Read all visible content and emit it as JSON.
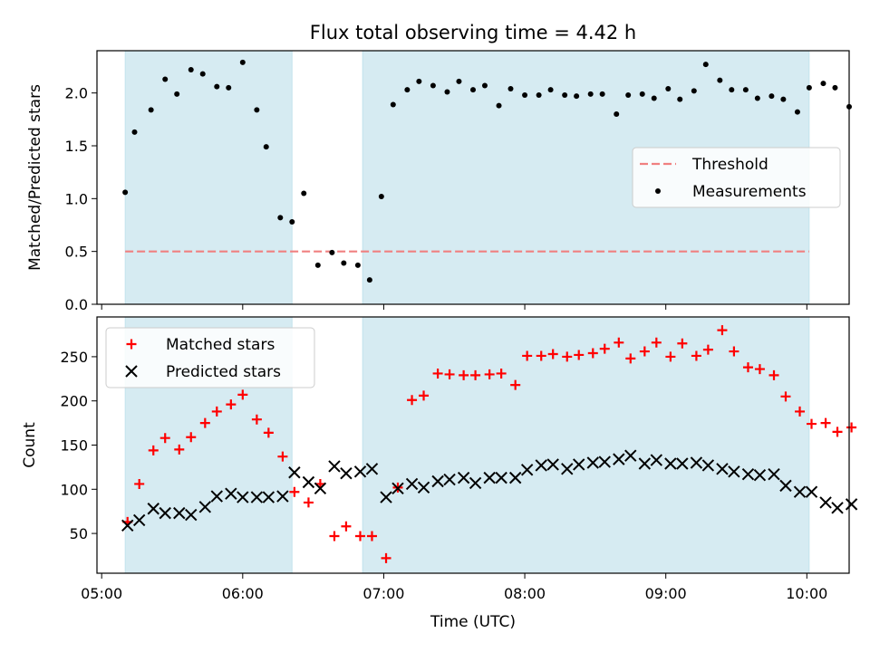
{
  "chart_data": [
    {
      "type": "scatter",
      "title": "Flux total observing time = 4.42 h",
      "xlabel": "",
      "ylabel": "Matched/Predicted stars",
      "xlim": [
        "04:58",
        "10:18"
      ],
      "ylim": [
        0,
        2.4
      ],
      "yticks": [
        0.0,
        0.5,
        1.0,
        1.5,
        2.0
      ],
      "ytick_labels": [
        "0.0",
        "0.5",
        "1.0",
        "1.5",
        "2.0"
      ],
      "xticks": [
        "05:00",
        "06:00",
        "07:00",
        "08:00",
        "09:00",
        "10:00"
      ],
      "shaded_intervals": [
        [
          "05:10",
          "06:21"
        ],
        [
          "06:51",
          "10:01"
        ]
      ],
      "threshold": {
        "name": "Threshold",
        "value": 0.5,
        "x_range": [
          "05:10",
          "10:01"
        ],
        "color": "#f08080",
        "style": "dashed"
      },
      "legend_position": "center-right",
      "series": [
        {
          "name": "Measurements",
          "color": "#000000",
          "marker": "dot",
          "points": [
            [
              "05:10",
              1.06
            ],
            [
              "05:14",
              1.63
            ],
            [
              "05:21",
              1.84
            ],
            [
              "05:27",
              2.13
            ],
            [
              "05:32",
              1.99
            ],
            [
              "05:38",
              2.22
            ],
            [
              "05:43",
              2.18
            ],
            [
              "05:49",
              2.06
            ],
            [
              "05:54",
              2.05
            ],
            [
              "06:00",
              2.29
            ],
            [
              "06:06",
              1.84
            ],
            [
              "06:10",
              1.49
            ],
            [
              "06:16",
              0.82
            ],
            [
              "06:21",
              0.78
            ],
            [
              "06:26",
              1.05
            ],
            [
              "06:32",
              0.37
            ],
            [
              "06:38",
              0.49
            ],
            [
              "06:43",
              0.39
            ],
            [
              "06:49",
              0.37
            ],
            [
              "06:54",
              0.23
            ],
            [
              "06:59",
              1.02
            ],
            [
              "07:04",
              1.89
            ],
            [
              "07:10",
              2.03
            ],
            [
              "07:15",
              2.11
            ],
            [
              "07:21",
              2.07
            ],
            [
              "07:27",
              2.01
            ],
            [
              "07:32",
              2.11
            ],
            [
              "07:38",
              2.03
            ],
            [
              "07:43",
              2.07
            ],
            [
              "07:49",
              1.88
            ],
            [
              "07:54",
              2.04
            ],
            [
              "08:00",
              1.98
            ],
            [
              "08:06",
              1.98
            ],
            [
              "08:11",
              2.03
            ],
            [
              "08:17",
              1.98
            ],
            [
              "08:22",
              1.97
            ],
            [
              "08:28",
              1.99
            ],
            [
              "08:33",
              1.99
            ],
            [
              "08:39",
              1.8
            ],
            [
              "08:44",
              1.98
            ],
            [
              "08:50",
              1.99
            ],
            [
              "08:55",
              1.95
            ],
            [
              "09:01",
              2.04
            ],
            [
              "09:06",
              1.94
            ],
            [
              "09:12",
              2.02
            ],
            [
              "09:17",
              2.27
            ],
            [
              "09:23",
              2.12
            ],
            [
              "09:28",
              2.03
            ],
            [
              "09:34",
              2.03
            ],
            [
              "09:39",
              1.95
            ],
            [
              "09:45",
              1.97
            ],
            [
              "09:50",
              1.94
            ],
            [
              "09:56",
              1.82
            ],
            [
              "10:01",
              2.05
            ],
            [
              "10:07",
              2.09
            ],
            [
              "10:12",
              2.05
            ],
            [
              "10:18",
              1.87
            ]
          ]
        }
      ]
    },
    {
      "type": "scatter",
      "title": "",
      "xlabel": "Time (UTC)",
      "ylabel": "Count",
      "xlim": [
        "04:58",
        "10:18"
      ],
      "ylim": [
        5,
        295
      ],
      "yticks": [
        50,
        100,
        150,
        200,
        250
      ],
      "ytick_labels": [
        "50",
        "100",
        "150",
        "200",
        "250"
      ],
      "xticks": [
        "05:00",
        "06:00",
        "07:00",
        "08:00",
        "09:00",
        "10:00"
      ],
      "xtick_labels": [
        "05:00",
        "06:00",
        "07:00",
        "08:00",
        "09:00",
        "10:00"
      ],
      "shaded_intervals": [
        [
          "05:10",
          "06:21"
        ],
        [
          "06:51",
          "10:01"
        ]
      ],
      "legend_position": "top-left",
      "series": [
        {
          "name": "Matched stars",
          "color": "#ff0000",
          "marker": "plus",
          "points": [
            [
              "05:11",
              63
            ],
            [
              "05:16",
              106
            ],
            [
              "05:22",
              144
            ],
            [
              "05:27",
              158
            ],
            [
              "05:33",
              145
            ],
            [
              "05:38",
              159
            ],
            [
              "05:44",
              175
            ],
            [
              "05:49",
              188
            ],
            [
              "05:55",
              196
            ],
            [
              "06:00",
              207
            ],
            [
              "06:06",
              179
            ],
            [
              "06:11",
              164
            ],
            [
              "06:17",
              137
            ],
            [
              "06:22",
              97
            ],
            [
              "06:28",
              85
            ],
            [
              "06:33",
              106
            ],
            [
              "06:39",
              47
            ],
            [
              "06:44",
              58
            ],
            [
              "06:50",
              47
            ],
            [
              "06:55",
              47
            ],
            [
              "07:01",
              22
            ],
            [
              "07:06",
              102
            ],
            [
              "07:12",
              201
            ],
            [
              "07:17",
              206
            ],
            [
              "07:23",
              231
            ],
            [
              "07:28",
              230
            ],
            [
              "07:34",
              229
            ],
            [
              "07:39",
              229
            ],
            [
              "07:45",
              230
            ],
            [
              "07:50",
              231
            ],
            [
              "07:56",
              218
            ],
            [
              "08:01",
              251
            ],
            [
              "08:07",
              251
            ],
            [
              "08:12",
              253
            ],
            [
              "08:18",
              250
            ],
            [
              "08:23",
              252
            ],
            [
              "08:29",
              254
            ],
            [
              "08:34",
              259
            ],
            [
              "08:40",
              266
            ],
            [
              "08:45",
              248
            ],
            [
              "08:51",
              256
            ],
            [
              "08:56",
              266
            ],
            [
              "09:02",
              250
            ],
            [
              "09:07",
              265
            ],
            [
              "09:13",
              251
            ],
            [
              "09:18",
              258
            ],
            [
              "09:24",
              280
            ],
            [
              "09:29",
              256
            ],
            [
              "09:35",
              238
            ],
            [
              "09:40",
              236
            ],
            [
              "09:46",
              229
            ],
            [
              "09:51",
              205
            ],
            [
              "09:57",
              188
            ],
            [
              "10:02",
              174
            ],
            [
              "10:08",
              175
            ],
            [
              "10:13",
              165
            ],
            [
              "10:19",
              170
            ]
          ]
        },
        {
          "name": "Predicted stars",
          "color": "#000000",
          "marker": "x",
          "points": [
            [
              "05:11",
              59
            ],
            [
              "05:16",
              65
            ],
            [
              "05:22",
              78
            ],
            [
              "05:27",
              73
            ],
            [
              "05:33",
              73
            ],
            [
              "05:38",
              71
            ],
            [
              "05:44",
              80
            ],
            [
              "05:49",
              92
            ],
            [
              "05:55",
              95
            ],
            [
              "06:00",
              91
            ],
            [
              "06:06",
              91
            ],
            [
              "06:11",
              91
            ],
            [
              "06:17",
              92
            ],
            [
              "06:22",
              119
            ],
            [
              "06:28",
              108
            ],
            [
              "06:33",
              101
            ],
            [
              "06:39",
              126
            ],
            [
              "06:44",
              118
            ],
            [
              "06:50",
              120
            ],
            [
              "06:55",
              123
            ],
            [
              "07:01",
              91
            ],
            [
              "07:06",
              101
            ],
            [
              "07:12",
              106
            ],
            [
              "07:17",
              102
            ],
            [
              "07:23",
              109
            ],
            [
              "07:28",
              111
            ],
            [
              "07:34",
              113
            ],
            [
              "07:39",
              107
            ],
            [
              "07:45",
              113
            ],
            [
              "07:50",
              113
            ],
            [
              "07:56",
              113
            ],
            [
              "08:01",
              122
            ],
            [
              "08:07",
              127
            ],
            [
              "08:12",
              128
            ],
            [
              "08:18",
              123
            ],
            [
              "08:23",
              128
            ],
            [
              "08:29",
              130
            ],
            [
              "08:34",
              131
            ],
            [
              "08:40",
              134
            ],
            [
              "08:45",
              138
            ],
            [
              "08:51",
              129
            ],
            [
              "08:56",
              133
            ],
            [
              "09:02",
              129
            ],
            [
              "09:07",
              129
            ],
            [
              "09:13",
              130
            ],
            [
              "09:18",
              127
            ],
            [
              "09:24",
              123
            ],
            [
              "09:29",
              120
            ],
            [
              "09:35",
              117
            ],
            [
              "09:40",
              116
            ],
            [
              "09:46",
              117
            ],
            [
              "09:51",
              104
            ],
            [
              "09:57",
              97
            ],
            [
              "10:02",
              97
            ],
            [
              "10:08",
              85
            ],
            [
              "10:13",
              79
            ],
            [
              "10:19",
              83
            ]
          ]
        }
      ]
    }
  ],
  "colors": {
    "shade": "#add8e6",
    "threshold": "#f08080",
    "matched": "#ff0000",
    "predicted": "#000000",
    "measurement": "#000000"
  }
}
